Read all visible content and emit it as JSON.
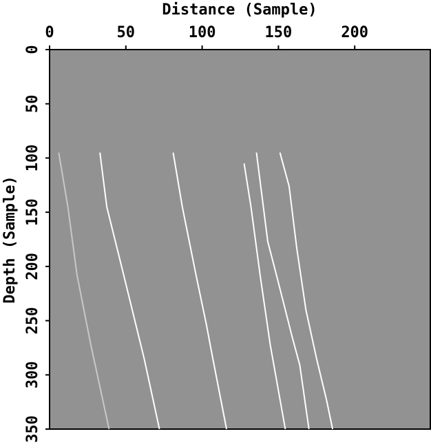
{
  "chart_data": {
    "type": "line",
    "x_label": "Distance (Sample)",
    "y_label": "Depth (Sample)",
    "xlim": [
      0,
      250
    ],
    "ylim": [
      0,
      350
    ],
    "xticks": [
      0,
      50,
      100,
      150,
      200
    ],
    "yticks": [
      0,
      50,
      100,
      150,
      200,
      250,
      300,
      350
    ],
    "x_axis_position": "top",
    "y_inverted": true,
    "background": "#929292",
    "series": [
      {
        "color": "#c8c8c8",
        "x": [
          6,
          12,
          18,
          27,
          39
        ],
        "values": [
          95,
          145,
          208,
          272,
          350
        ]
      },
      {
        "color": "#ffffff",
        "x": [
          33,
          37.5,
          48.6,
          62,
          72
        ],
        "values": [
          95,
          145,
          208,
          285,
          350
        ]
      },
      {
        "color": "#ffffff",
        "x": [
          81,
          87,
          96,
          102.7,
          107,
          116
        ],
        "values": [
          95,
          145,
          208,
          253,
          285,
          350
        ]
      },
      {
        "color": "#ffffff",
        "x": [
          127.5,
          132,
          138,
          144.6,
          154.5
        ],
        "values": [
          105,
          145,
          208,
          272,
          350
        ]
      },
      {
        "color": "#ffffff",
        "x": [
          135.6,
          143,
          150,
          159,
          164,
          170
        ],
        "values": [
          95,
          177,
          215,
          265,
          291,
          350
        ]
      },
      {
        "color": "#ffffff",
        "x": [
          151,
          157,
          162,
          168,
          175,
          181.5,
          185.5
        ],
        "values": [
          95,
          126,
          183,
          240,
          285,
          323,
          350
        ]
      }
    ]
  }
}
